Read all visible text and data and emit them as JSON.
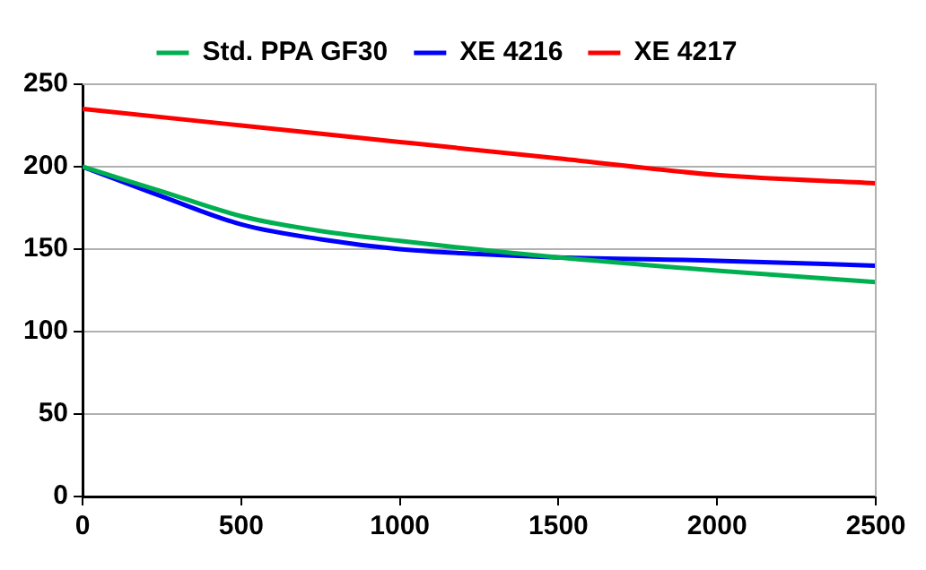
{
  "chart_data": {
    "type": "line",
    "series": [
      {
        "name": "Std. PPA GF30",
        "color": "#00b050",
        "x": [
          0,
          250,
          500,
          750,
          1000,
          1500,
          2000,
          2500
        ],
        "values": [
          200,
          185,
          170,
          161,
          155,
          145,
          137,
          130
        ]
      },
      {
        "name": "XE 4216",
        "color": "#0000ff",
        "x": [
          0,
          250,
          500,
          750,
          1000,
          1250,
          1500,
          2000,
          2500
        ],
        "values": [
          200,
          182,
          165,
          156,
          150,
          147,
          145,
          143,
          140
        ]
      },
      {
        "name": "XE 4217",
        "color": "#ff0000",
        "x": [
          0,
          500,
          1000,
          1500,
          2000,
          2500
        ],
        "values": [
          235,
          225,
          215,
          205,
          195,
          190
        ]
      }
    ],
    "xlim": [
      0,
      2500
    ],
    "xticks": [
      0,
      500,
      1000,
      1500,
      2000,
      2500
    ],
    "ylim": [
      0,
      250
    ],
    "yticks": [
      0,
      50,
      100,
      150,
      200,
      250
    ],
    "grid": "y",
    "legend": "top",
    "marker": "none"
  }
}
